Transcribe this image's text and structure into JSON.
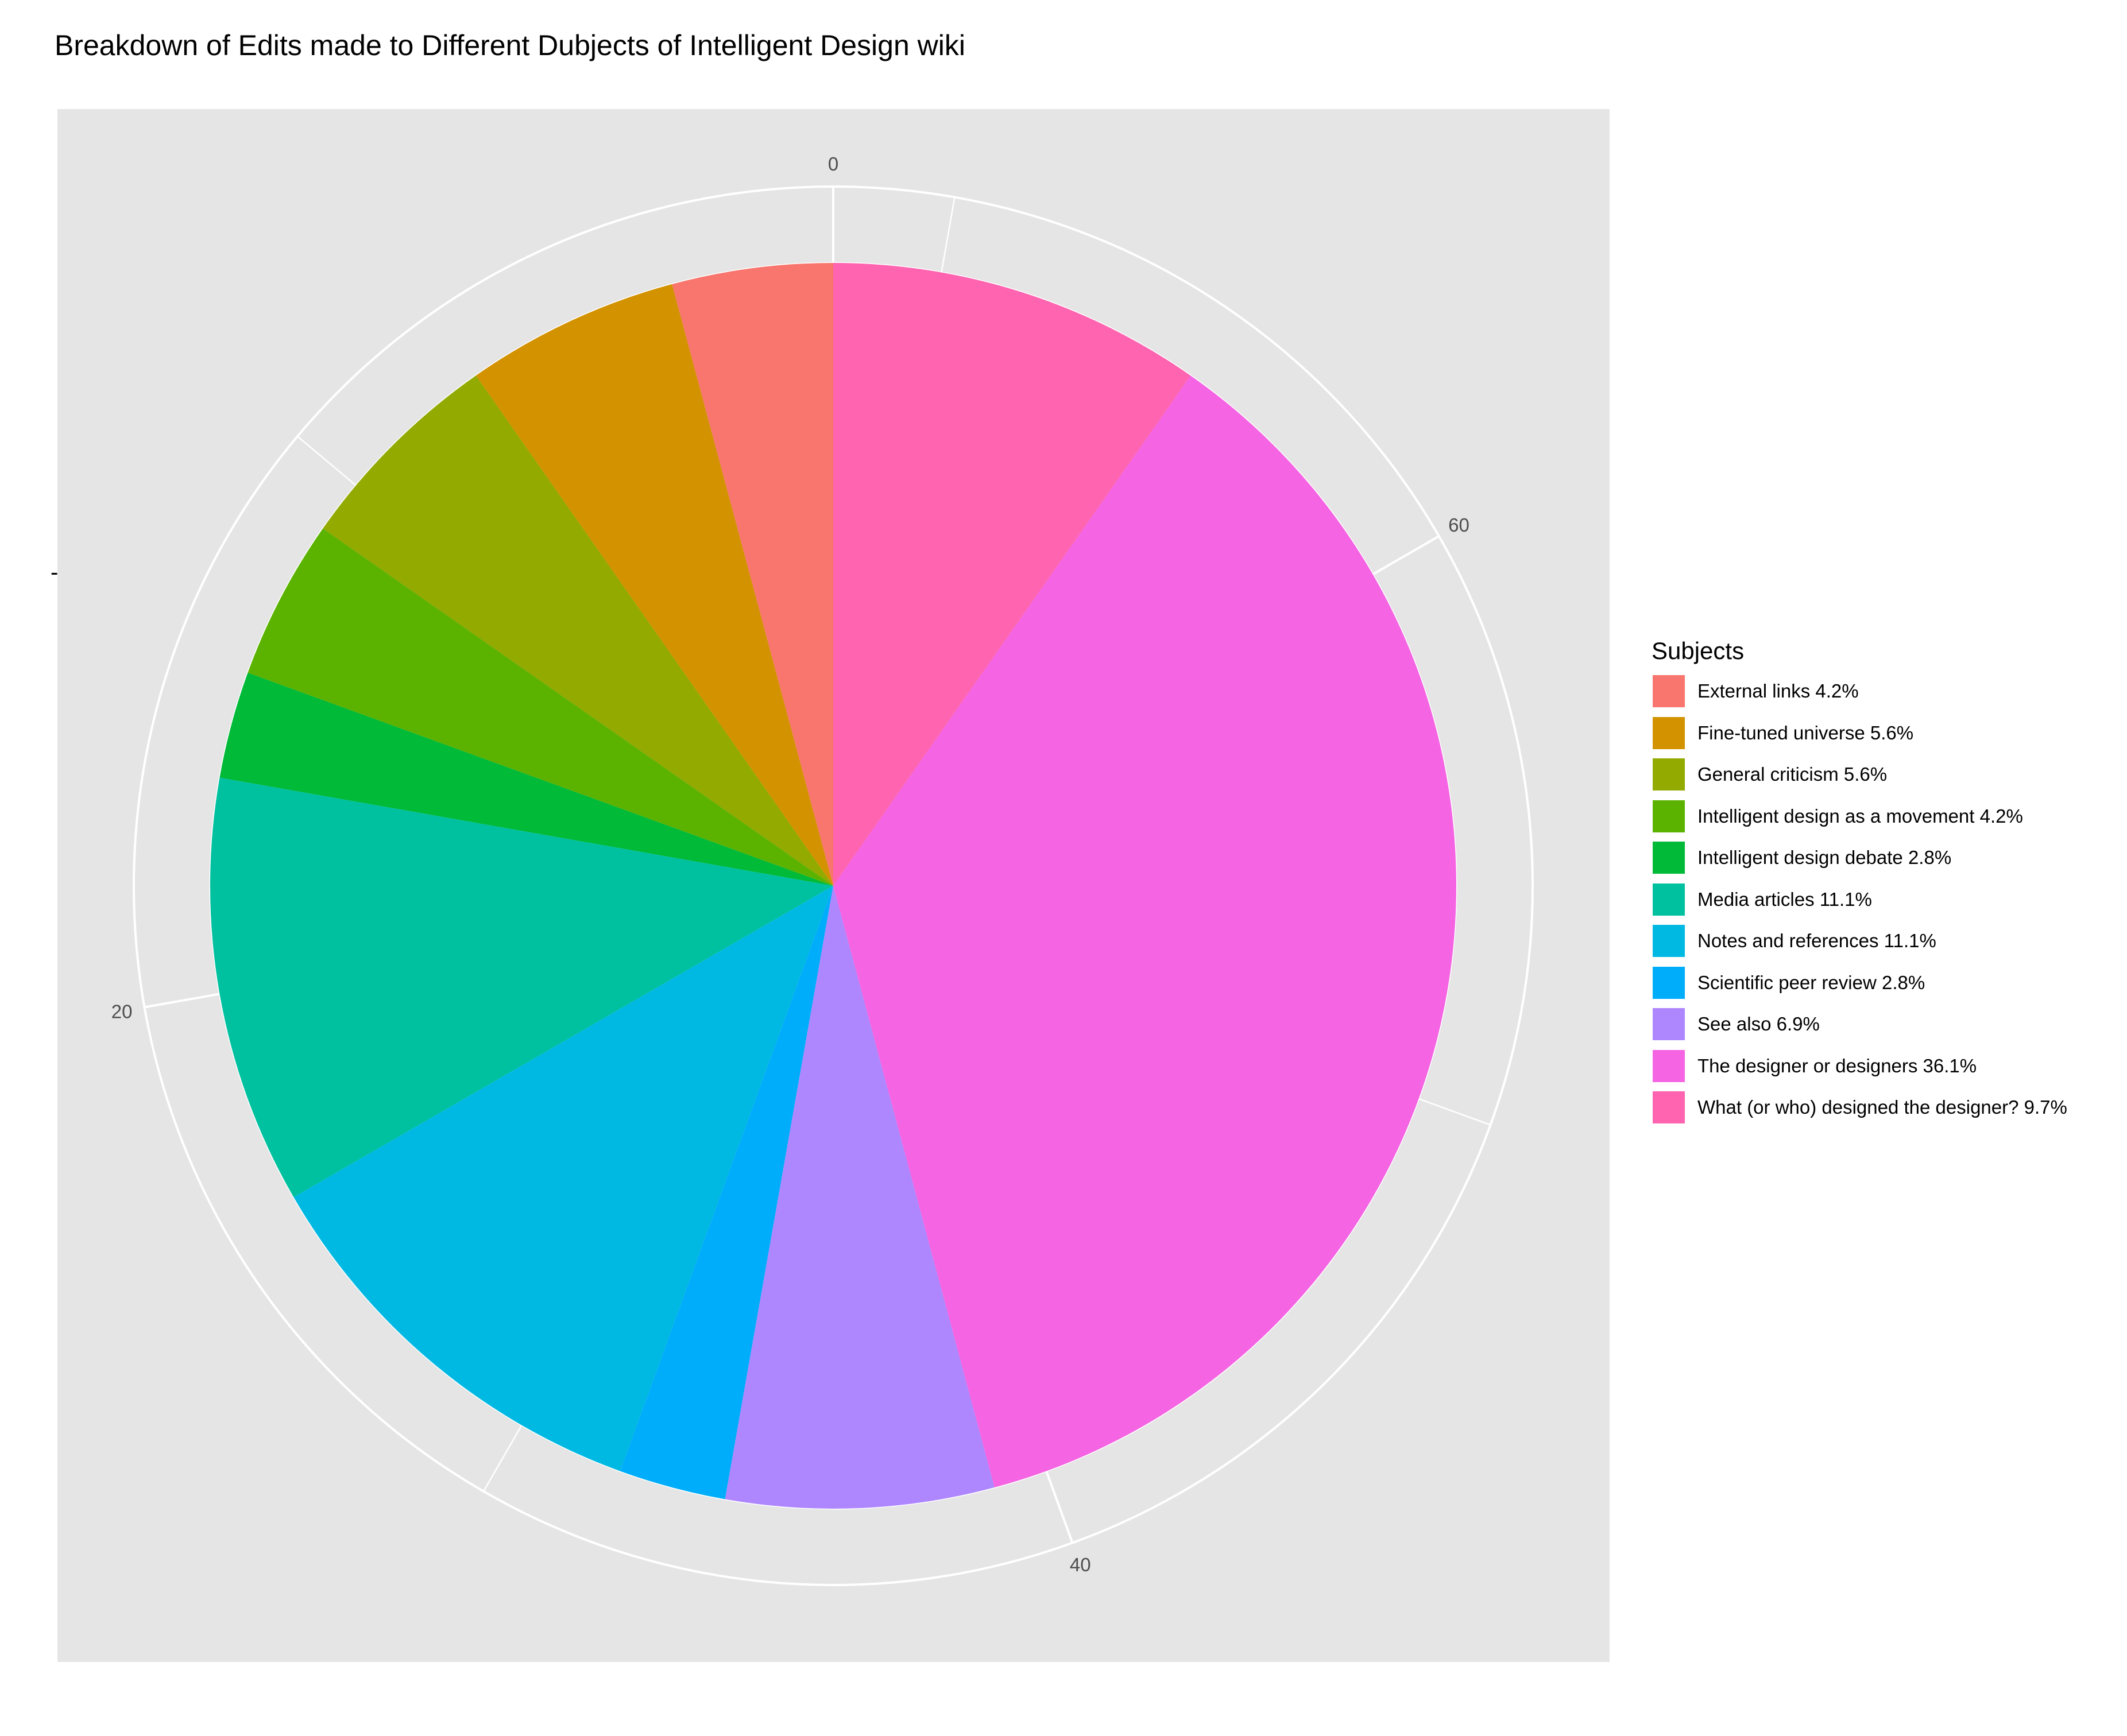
{
  "chart_data": {
    "type": "pie",
    "title": "Breakdown of Edits made to Different Dubjects of Intelligent Design wiki",
    "xlabel": "",
    "ylabel": "-",
    "legend_title": "Subjects",
    "legend_position": "right",
    "axis_range": [
      0,
      72
    ],
    "ticks": [
      "0",
      "20",
      "40",
      "60"
    ],
    "grid": true,
    "slices": [
      {
        "label": "External links 4.2%",
        "value": 3,
        "color": "#F8766D"
      },
      {
        "label": "Fine-tuned universe 5.6%",
        "value": 4,
        "color": "#D39200"
      },
      {
        "label": "General criticism 5.6%",
        "value": 4,
        "color": "#93AA00"
      },
      {
        "label": "Intelligent design as a movement 4.2%",
        "value": 3,
        "color": "#5BB300"
      },
      {
        "label": "Intelligent design debate 2.8%",
        "value": 2,
        "color": "#00BA38"
      },
      {
        "label": "Media articles 11.1%",
        "value": 8,
        "color": "#00C19F"
      },
      {
        "label": "Notes and references 11.1%",
        "value": 8,
        "color": "#00B9E3"
      },
      {
        "label": "Scientific peer review 2.8%",
        "value": 2,
        "color": "#00ADFA"
      },
      {
        "label": "See also 6.9%",
        "value": 5,
        "color": "#AE87FF"
      },
      {
        "label": "The designer or designers 36.1%",
        "value": 26,
        "color": "#F564E3"
      },
      {
        "label": "What (or who) designed the designer? 9.7%",
        "value": 7,
        "color": "#FF64B0"
      }
    ]
  }
}
